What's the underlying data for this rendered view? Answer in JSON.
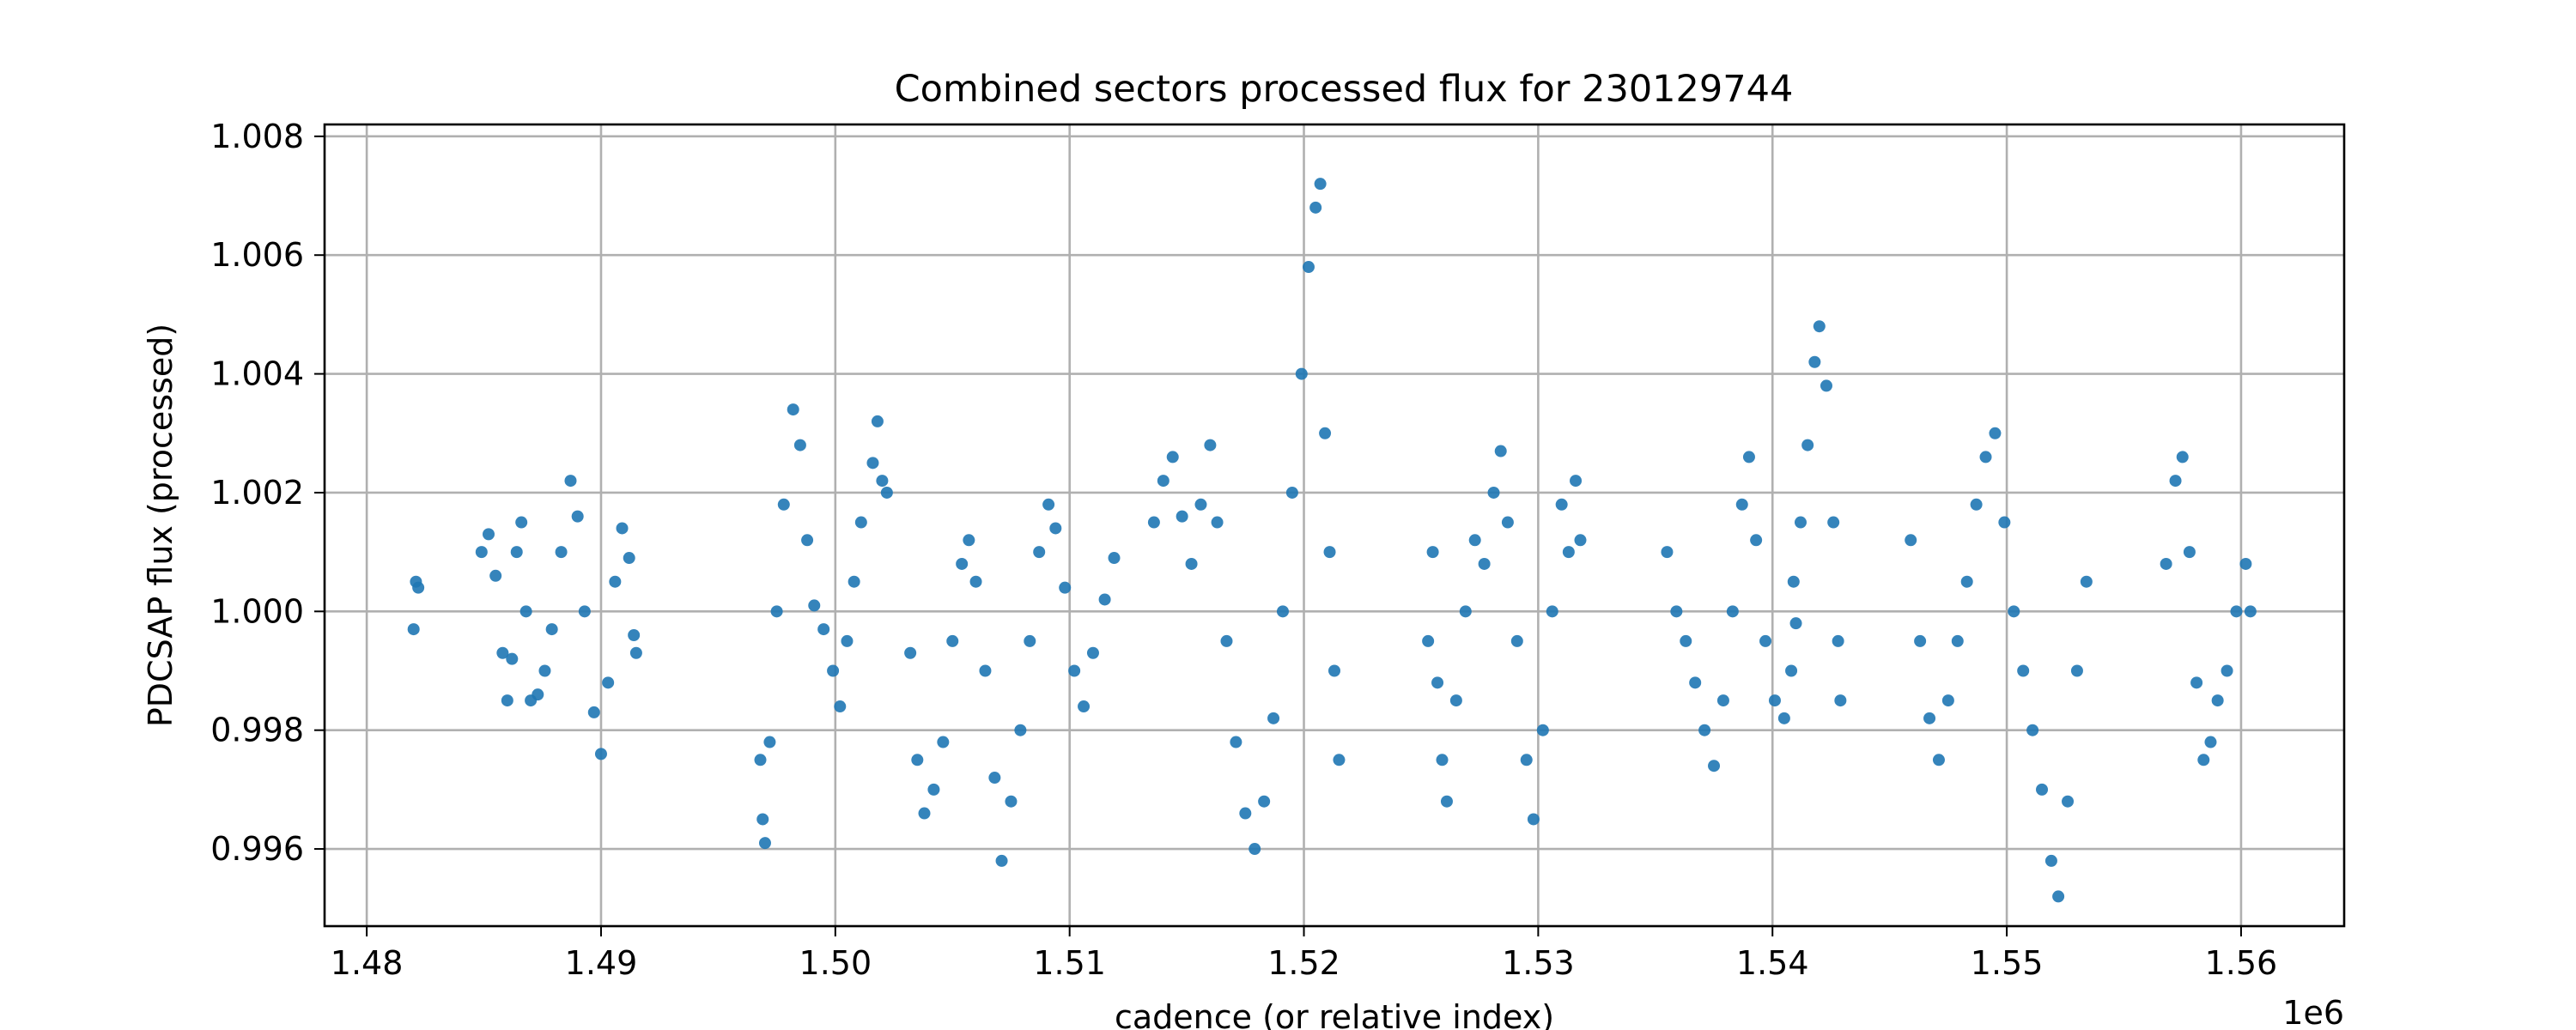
{
  "chart_data": {
    "type": "scatter",
    "title": "Combined sectors processed flux for 230129744",
    "xlabel": "cadence (or relative index)",
    "ylabel": "PDCSAP flux (processed)",
    "x_offset_label": "1e6",
    "xlim": [
      1478200,
      1564400
    ],
    "ylim": [
      0.9947,
      1.0082
    ],
    "xticks": [
      1480000,
      1490000,
      1500000,
      1510000,
      1520000,
      1530000,
      1540000,
      1550000,
      1560000
    ],
    "xtick_labels": [
      "1.48",
      "1.49",
      "1.50",
      "1.51",
      "1.52",
      "1.53",
      "1.54",
      "1.55",
      "1.56"
    ],
    "yticks": [
      0.996,
      0.998,
      1.0,
      1.002,
      1.004,
      1.006,
      1.008
    ],
    "ytick_labels": [
      "0.996",
      "0.998",
      "1.000",
      "1.002",
      "1.004",
      "1.006",
      "1.008"
    ],
    "grid": true,
    "series": [
      {
        "color": "#1f77b4",
        "segments": [
          [
            [
              1482000,
              0.9997
            ],
            [
              1482100,
              1.0005
            ],
            [
              1482200,
              1.0004
            ]
          ],
          [
            [
              1484900,
              1.001
            ],
            [
              1485200,
              1.0013
            ],
            [
              1485500,
              1.0006
            ],
            [
              1485800,
              0.9993
            ],
            [
              1486000,
              0.9985
            ],
            [
              1486200,
              0.9992
            ],
            [
              1486400,
              1.001
            ],
            [
              1486600,
              1.0015
            ],
            [
              1486800,
              1.0
            ]
          ],
          [
            [
              1487000,
              0.9985
            ],
            [
              1487300,
              0.9986
            ],
            [
              1487600,
              0.999
            ],
            [
              1487900,
              0.9997
            ],
            [
              1488300,
              1.001
            ],
            [
              1488700,
              1.0022
            ],
            [
              1489000,
              1.0016
            ],
            [
              1489300,
              1.0
            ],
            [
              1489700,
              0.9983
            ],
            [
              1490000,
              0.9976
            ],
            [
              1490300,
              0.9988
            ],
            [
              1490600,
              1.0005
            ],
            [
              1490900,
              1.0014
            ],
            [
              1491200,
              1.0009
            ],
            [
              1491400,
              0.9996
            ],
            [
              1491500,
              0.9993
            ]
          ]
        ]
      },
      {
        "color": "#1f77b4",
        "segments": [
          [
            [
              1496800,
              0.9975
            ],
            [
              1496900,
              0.9965
            ],
            [
              1497000,
              0.9961
            ],
            [
              1497200,
              0.9978
            ],
            [
              1497500,
              1.0
            ],
            [
              1497800,
              1.0018
            ],
            [
              1498200,
              1.0034
            ],
            [
              1498500,
              1.0028
            ],
            [
              1498800,
              1.0012
            ],
            [
              1499100,
              1.0001
            ],
            [
              1499500,
              0.9997
            ],
            [
              1499900,
              0.999
            ],
            [
              1500200,
              0.9984
            ],
            [
              1500500,
              0.9995
            ],
            [
              1500800,
              1.0005
            ],
            [
              1501100,
              1.0015
            ]
          ],
          [
            [
              1501600,
              1.0025
            ],
            [
              1501800,
              1.0032
            ],
            [
              1502000,
              1.0022
            ],
            [
              1502200,
              1.002
            ]
          ]
        ]
      },
      {
        "color": "#1f77b4",
        "segments": [
          [
            [
              1503200,
              0.9993
            ],
            [
              1503500,
              0.9975
            ],
            [
              1503800,
              0.9966
            ],
            [
              1504200,
              0.997
            ],
            [
              1504600,
              0.9978
            ],
            [
              1505000,
              0.9995
            ],
            [
              1505400,
              1.0008
            ],
            [
              1505700,
              1.0012
            ],
            [
              1506000,
              1.0005
            ],
            [
              1506400,
              0.999
            ],
            [
              1506800,
              0.9972
            ],
            [
              1507100,
              0.9958
            ],
            [
              1507500,
              0.9968
            ],
            [
              1507900,
              0.998
            ],
            [
              1508300,
              0.9995
            ],
            [
              1508700,
              1.001
            ],
            [
              1509100,
              1.0018
            ],
            [
              1509400,
              1.0014
            ],
            [
              1509800,
              1.0004
            ],
            [
              1510200,
              0.999
            ],
            [
              1510600,
              0.9984
            ],
            [
              1511000,
              0.9993
            ],
            [
              1511500,
              1.0002
            ],
            [
              1511900,
              1.0009
            ]
          ]
        ]
      },
      {
        "color": "#1f77b4",
        "segments": [
          [
            [
              1513600,
              1.0015
            ],
            [
              1514000,
              1.0022
            ],
            [
              1514400,
              1.0026
            ],
            [
              1514800,
              1.0016
            ],
            [
              1515200,
              1.0008
            ],
            [
              1515600,
              1.0018
            ],
            [
              1516000,
              1.0028
            ],
            [
              1516300,
              1.0015
            ],
            [
              1516700,
              0.9995
            ],
            [
              1517100,
              0.9978
            ],
            [
              1517500,
              0.9966
            ],
            [
              1517900,
              0.996
            ],
            [
              1518300,
              0.9968
            ],
            [
              1518700,
              0.9982
            ],
            [
              1519100,
              1.0
            ],
            [
              1519500,
              1.002
            ],
            [
              1519900,
              1.004
            ],
            [
              1520200,
              1.0058
            ],
            [
              1520500,
              1.0068
            ],
            [
              1520700,
              1.0072
            ]
          ],
          [
            [
              1520900,
              1.003
            ],
            [
              1521100,
              1.001
            ],
            [
              1521300,
              0.999
            ],
            [
              1521500,
              0.9975
            ]
          ]
        ]
      },
      {
        "color": "#1f77b4",
        "segments": [
          [
            [
              1525300,
              0.9995
            ],
            [
              1525500,
              1.001
            ],
            [
              1525700,
              0.9988
            ],
            [
              1525900,
              0.9975
            ],
            [
              1526100,
              0.9968
            ],
            [
              1526500,
              0.9985
            ],
            [
              1526900,
              1.0
            ],
            [
              1527300,
              1.0012
            ],
            [
              1527700,
              1.0008
            ],
            [
              1528100,
              1.002
            ],
            [
              1528400,
              1.0027
            ],
            [
              1528700,
              1.0015
            ],
            [
              1529100,
              0.9995
            ],
            [
              1529500,
              0.9975
            ],
            [
              1529800,
              0.9965
            ],
            [
              1530200,
              0.998
            ],
            [
              1530600,
              1.0
            ],
            [
              1531000,
              1.0018
            ],
            [
              1531300,
              1.001
            ],
            [
              1531600,
              1.0022
            ],
            [
              1531800,
              1.0012
            ]
          ]
        ]
      },
      {
        "color": "#1f77b4",
        "segments": [
          [
            [
              1535500,
              1.001
            ],
            [
              1535900,
              1.0
            ],
            [
              1536300,
              0.9995
            ],
            [
              1536700,
              0.9988
            ],
            [
              1537100,
              0.998
            ],
            [
              1537500,
              0.9974
            ],
            [
              1537900,
              0.9985
            ],
            [
              1538300,
              1.0
            ],
            [
              1538700,
              1.0018
            ],
            [
              1539000,
              1.0026
            ],
            [
              1539300,
              1.0012
            ],
            [
              1539700,
              0.9995
            ],
            [
              1540100,
              0.9985
            ],
            [
              1540500,
              0.9982
            ],
            [
              1540800,
              0.999
            ],
            [
              1541000,
              0.9998
            ]
          ],
          [
            [
              1540900,
              1.0005
            ],
            [
              1541200,
              1.0015
            ],
            [
              1541500,
              1.0028
            ],
            [
              1541800,
              1.0042
            ],
            [
              1542000,
              1.0048
            ],
            [
              1542300,
              1.0038
            ],
            [
              1542600,
              1.0015
            ],
            [
              1542800,
              0.9995
            ],
            [
              1542900,
              0.9985
            ]
          ]
        ]
      },
      {
        "color": "#1f77b4",
        "segments": [
          [
            [
              1545900,
              1.0012
            ],
            [
              1546300,
              0.9995
            ],
            [
              1546700,
              0.9982
            ],
            [
              1547100,
              0.9975
            ],
            [
              1547500,
              0.9985
            ],
            [
              1547900,
              0.9995
            ],
            [
              1548300,
              1.0005
            ],
            [
              1548700,
              1.0018
            ],
            [
              1549100,
              1.0026
            ],
            [
              1549500,
              1.003
            ],
            [
              1549900,
              1.0015
            ],
            [
              1550300,
              1.0
            ],
            [
              1550700,
              0.999
            ],
            [
              1551100,
              0.998
            ],
            [
              1551500,
              0.997
            ],
            [
              1551900,
              0.9958
            ],
            [
              1552200,
              0.9952
            ],
            [
              1552600,
              0.9968
            ],
            [
              1553000,
              0.999
            ],
            [
              1553400,
              1.0005
            ]
          ],
          [
            [
              1556800,
              1.0008
            ],
            [
              1557200,
              1.0022
            ],
            [
              1557500,
              1.0026
            ],
            [
              1557800,
              1.001
            ],
            [
              1558100,
              0.9988
            ],
            [
              1558400,
              0.9975
            ],
            [
              1558700,
              0.9978
            ],
            [
              1559000,
              0.9985
            ],
            [
              1559400,
              0.999
            ],
            [
              1559800,
              1.0
            ],
            [
              1560200,
              1.0008
            ],
            [
              1560400,
              1.0
            ]
          ]
        ]
      }
    ]
  }
}
